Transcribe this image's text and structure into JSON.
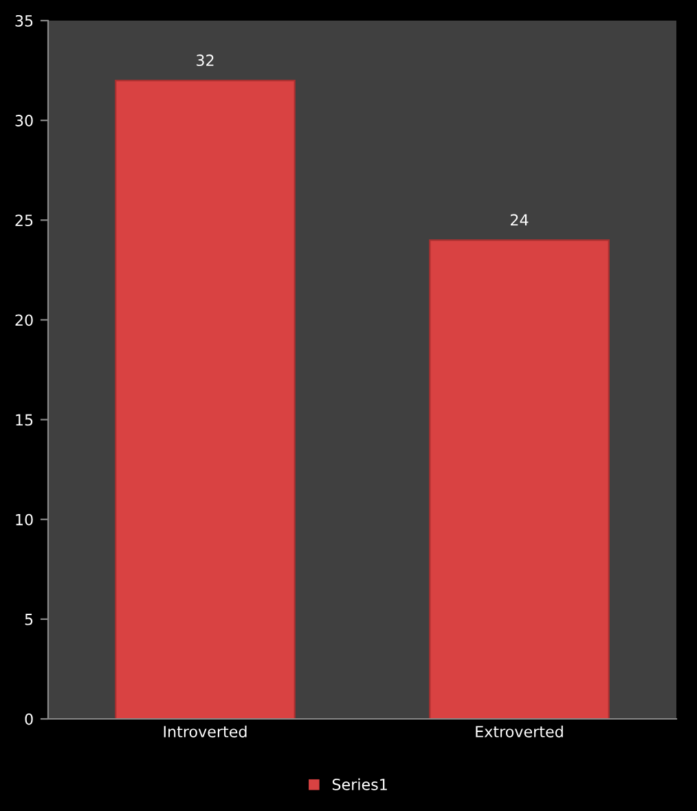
{
  "chart_data": {
    "type": "bar",
    "categories": [
      "Introverted",
      "Extroverted"
    ],
    "series": [
      {
        "name": "Series1",
        "color": "#d94242",
        "values": [
          32,
          24
        ]
      }
    ],
    "ylim": [
      0,
      35
    ],
    "yticks": [
      0,
      5,
      10,
      15,
      20,
      25,
      30,
      35
    ],
    "grid": false,
    "legend": "bottom",
    "data_labels": true
  }
}
